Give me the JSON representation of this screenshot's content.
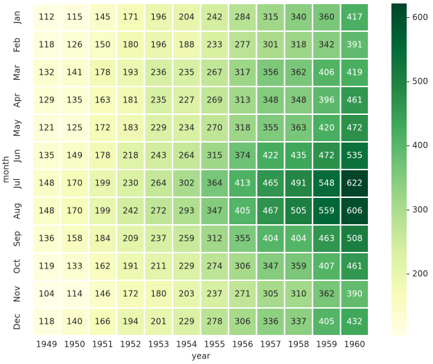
{
  "chart_data": {
    "type": "heatmap",
    "x_label": "year",
    "y_label": "month",
    "categories": [
      "1949",
      "1950",
      "1951",
      "1952",
      "1953",
      "1954",
      "1955",
      "1956",
      "1957",
      "1958",
      "1959",
      "1960"
    ],
    "y_categories": [
      "Jan",
      "Feb",
      "Mar",
      "Apr",
      "May",
      "Jun",
      "Jul",
      "Aug",
      "Sep",
      "Oct",
      "Nov",
      "Dec"
    ],
    "values": [
      [
        112,
        115,
        145,
        171,
        196,
        204,
        242,
        284,
        315,
        340,
        360,
        417
      ],
      [
        118,
        126,
        150,
        180,
        196,
        188,
        233,
        277,
        301,
        318,
        342,
        391
      ],
      [
        132,
        141,
        178,
        193,
        236,
        235,
        267,
        317,
        356,
        362,
        406,
        419
      ],
      [
        129,
        135,
        163,
        181,
        235,
        227,
        269,
        313,
        348,
        348,
        396,
        461
      ],
      [
        121,
        125,
        172,
        183,
        229,
        234,
        270,
        318,
        355,
        363,
        420,
        472
      ],
      [
        135,
        149,
        178,
        218,
        243,
        264,
        315,
        374,
        422,
        435,
        472,
        535
      ],
      [
        148,
        170,
        199,
        230,
        264,
        302,
        364,
        413,
        465,
        491,
        548,
        622
      ],
      [
        148,
        170,
        199,
        242,
        272,
        293,
        347,
        405,
        467,
        505,
        559,
        606
      ],
      [
        136,
        158,
        184,
        209,
        237,
        259,
        312,
        355,
        404,
        404,
        463,
        508
      ],
      [
        119,
        133,
        162,
        191,
        211,
        229,
        274,
        306,
        347,
        359,
        407,
        461
      ],
      [
        104,
        114,
        146,
        172,
        180,
        203,
        237,
        271,
        305,
        310,
        362,
        390
      ],
      [
        118,
        140,
        166,
        194,
        201,
        229,
        278,
        306,
        336,
        337,
        405,
        432
      ]
    ],
    "colormap": [
      "#ffffe5",
      "#f7fcb9",
      "#d9f0a3",
      "#addd8e",
      "#78c679",
      "#41ab5d",
      "#238443",
      "#006837",
      "#004529"
    ],
    "clim": [
      104,
      622
    ],
    "cticks": [
      200,
      300,
      400,
      500,
      600
    ]
  }
}
